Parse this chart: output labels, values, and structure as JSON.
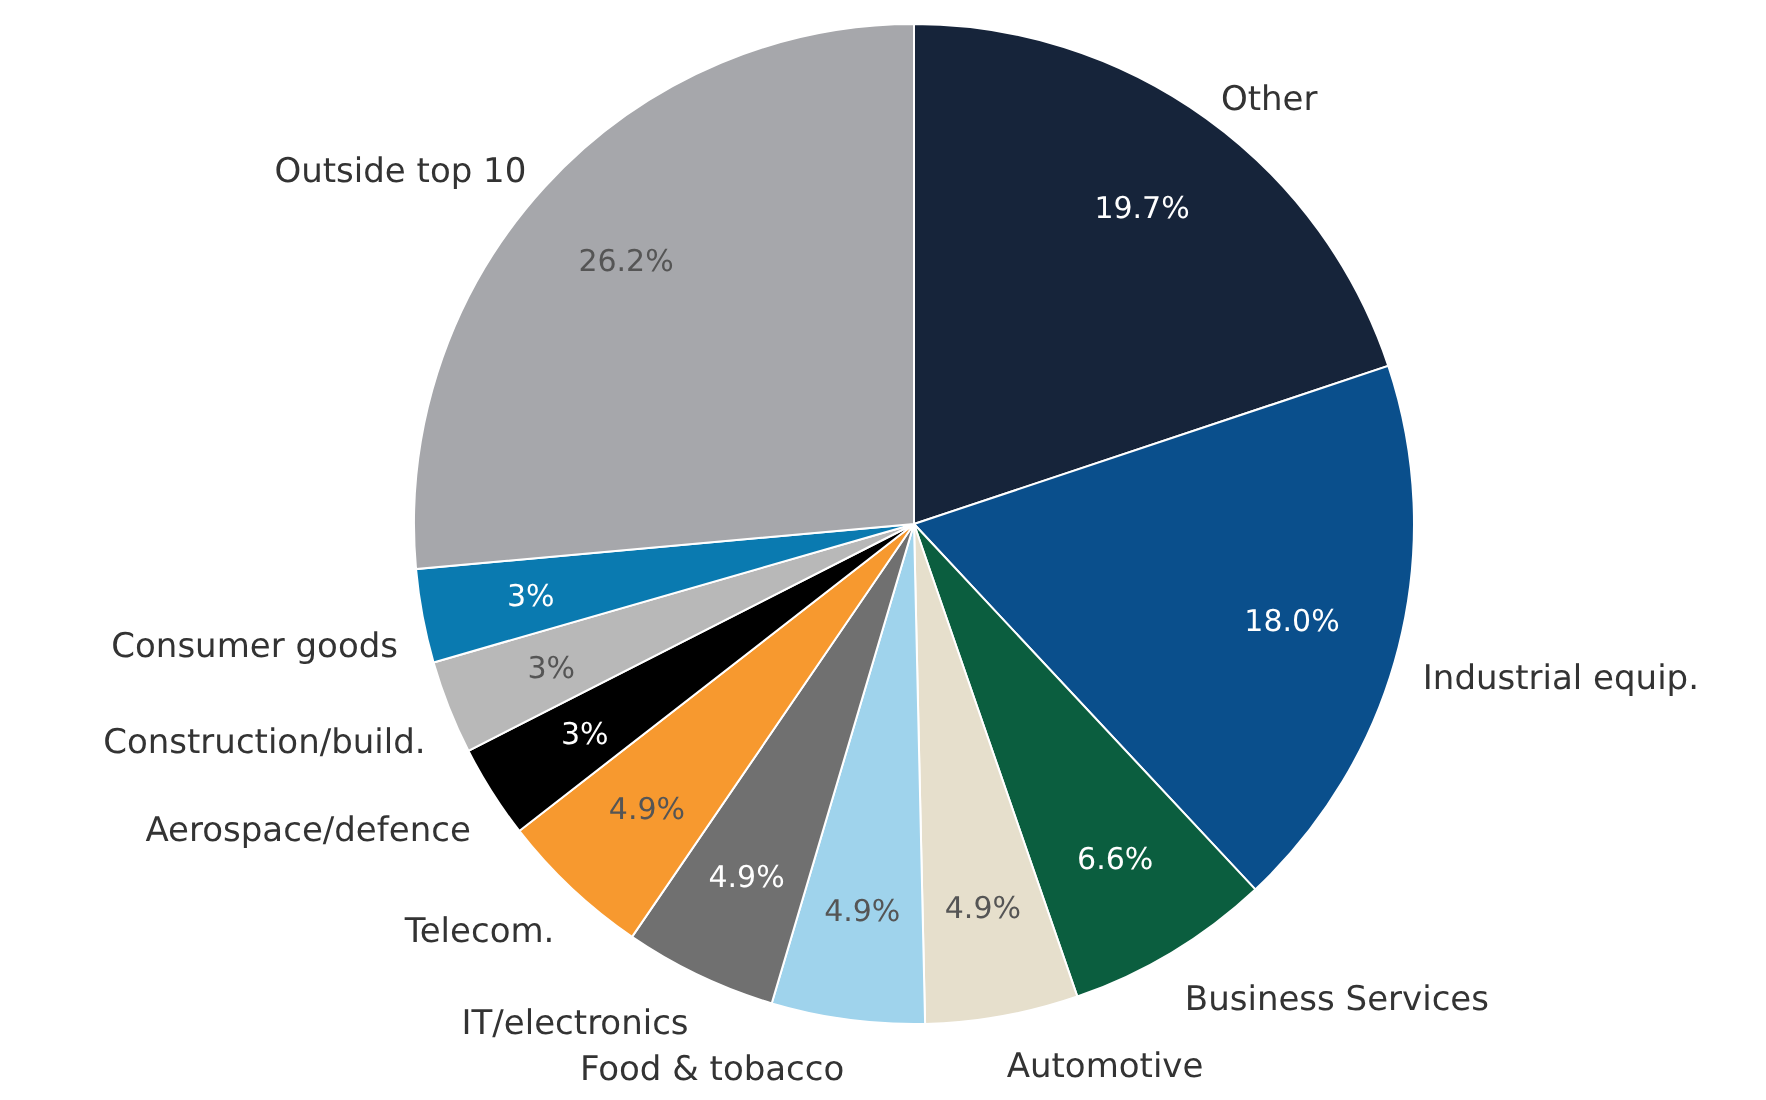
{
  "chart_data": {
    "type": "pie",
    "categories": [
      "Other",
      "Industrial equip.",
      "Business Services",
      "Automotive",
      "Food & tobacco",
      "IT/electronics",
      "Telecom.",
      "Aerospace/defence",
      "Construction/build.",
      "Consumer goods",
      "Outside top 10"
    ],
    "values": [
      19.7,
      18.0,
      6.6,
      4.9,
      4.9,
      4.9,
      4.9,
      3,
      3,
      3,
      26.2
    ],
    "value_labels": [
      "19.7%",
      "18.0%",
      "6.6%",
      "4.9%",
      "4.9%",
      "4.9%",
      "4.9%",
      "3%",
      "3%",
      "3%",
      "26.2%"
    ],
    "colors": [
      "#16243a",
      "#0a4f8c",
      "#0b5e3f",
      "#e6dfcc",
      "#9fd3ec",
      "#707070",
      "#f7992f",
      "#000000",
      "#b8b8b8",
      "#0a7ab0",
      "#a6a7ab"
    ],
    "legend": false
  }
}
